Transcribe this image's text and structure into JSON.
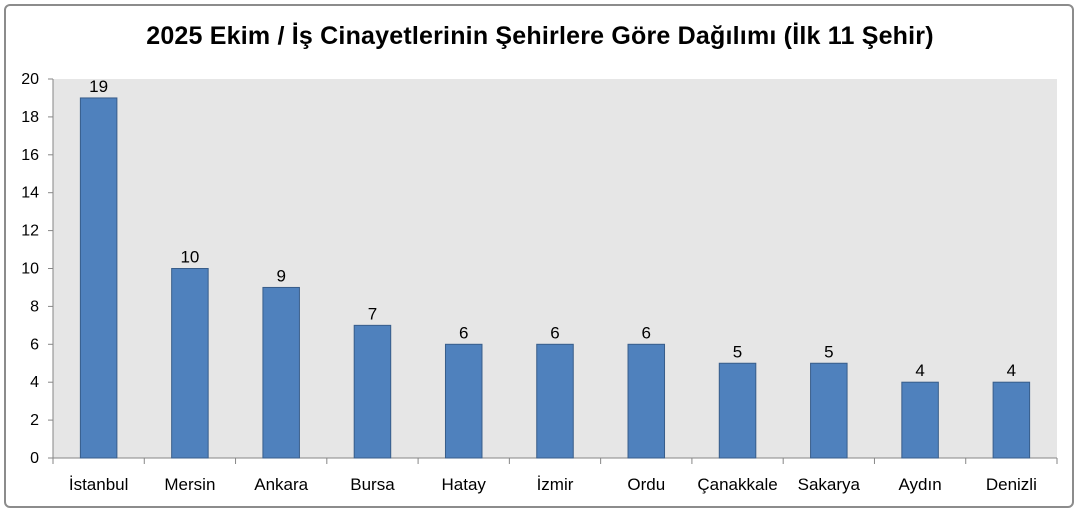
{
  "chart_data": {
    "type": "bar",
    "title": "2025 Ekim / İş Cinayetlerinin Şehirlere Göre Dağılımı (İlk 11 Şehir)",
    "xlabel": "",
    "ylabel": "",
    "categories": [
      "İstanbul",
      "Mersin",
      "Ankara",
      "Bursa",
      "Hatay",
      "İzmir",
      "Ordu",
      "Çanakkale",
      "Sakarya",
      "Aydın",
      "Denizli"
    ],
    "values": [
      19,
      10,
      9,
      7,
      6,
      6,
      6,
      5,
      5,
      4,
      4
    ],
    "ylim": [
      0,
      20
    ],
    "yticks": [
      0,
      2,
      4,
      6,
      8,
      10,
      12,
      14,
      16,
      18,
      20
    ],
    "grid": false,
    "legend": "none",
    "data_labels": true,
    "colors": {
      "bar_fill": "#4f81bd",
      "bar_stroke": "#385d8a",
      "plot_background": "#e6e6e6",
      "axis": "#868686"
    }
  }
}
